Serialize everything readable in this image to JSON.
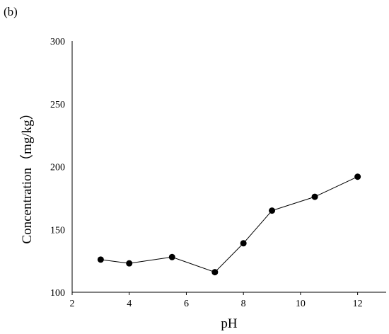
{
  "panel_label": "(b)",
  "chart_data": {
    "type": "line",
    "title": "",
    "xlabel": "pH",
    "ylabel": "Concentration（mg/kg）",
    "xlim": [
      2,
      13
    ],
    "ylim": [
      100,
      300
    ],
    "xticks": [
      2,
      4,
      6,
      8,
      10,
      12
    ],
    "yticks": [
      100,
      150,
      200,
      250,
      300
    ],
    "grid": false,
    "legend": "none",
    "series": [
      {
        "x": [
          3,
          4,
          5.5,
          7,
          8,
          9,
          10.5,
          12
        ],
        "y": [
          126,
          123,
          128,
          116,
          139,
          165,
          176,
          192
        ],
        "marker": "circle",
        "color": "#000000"
      }
    ]
  }
}
